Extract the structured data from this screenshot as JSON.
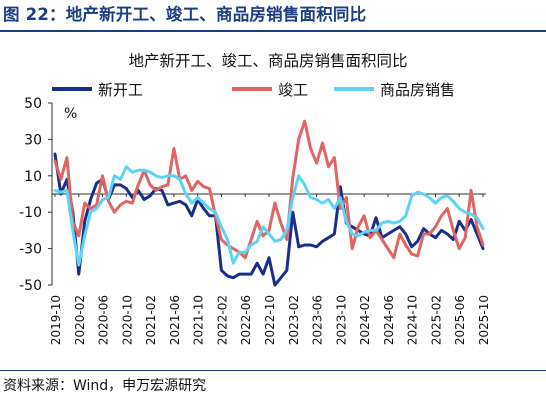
{
  "figure": {
    "title": "图 22：地产新开工、竣工、商品房销售面积同比",
    "source": "资料来源：Wind，申万宏源研究"
  },
  "chart_data": {
    "type": "line",
    "title": "地产新开工、竣工、商品房销售面积同比",
    "ylabel": "%",
    "ylim": [
      -50,
      50
    ],
    "yticks": [
      50,
      30,
      10,
      -10,
      -30,
      -50
    ],
    "ytick_labels": [
      "50",
      "30",
      "10",
      "-10",
      "-30",
      "-50"
    ],
    "grid": false,
    "legend_position": "top",
    "xtick_labels": [
      "2019-10",
      "2020-02",
      "2020-06",
      "2020-10",
      "2021-02",
      "2021-06",
      "2021-10",
      "2022-02",
      "2022-06",
      "2022-10",
      "2023-02",
      "2023-06",
      "2023-10",
      "2024-02",
      "2024-06",
      "2024-10",
      "2025-02",
      "2025-06",
      "2025-10"
    ],
    "x_labels_rotated": true,
    "x": [
      "2019-10",
      "2019-11",
      "2019-12",
      "2020-01",
      "2020-02",
      "2020-03",
      "2020-04",
      "2020-05",
      "2020-06",
      "2020-07",
      "2020-08",
      "2020-09",
      "2020-10",
      "2020-11",
      "2020-12",
      "2021-01",
      "2021-02",
      "2021-03",
      "2021-04",
      "2021-05",
      "2021-06",
      "2021-07",
      "2021-08",
      "2021-09",
      "2021-10",
      "2021-11",
      "2021-12",
      "2022-01",
      "2022-02",
      "2022-03",
      "2022-04",
      "2022-05",
      "2022-06",
      "2022-07",
      "2022-08",
      "2022-09",
      "2022-10",
      "2022-11",
      "2022-12",
      "2023-01",
      "2023-02",
      "2023-03",
      "2023-04",
      "2023-05",
      "2023-06",
      "2023-07",
      "2023-08",
      "2023-09",
      "2023-10",
      "2023-11",
      "2023-12",
      "2024-01",
      "2024-02",
      "2024-03",
      "2024-04",
      "2024-05",
      "2024-06",
      "2024-07",
      "2024-08",
      "2024-09",
      "2024-10",
      "2024-11",
      "2024-12",
      "2025-01",
      "2025-02",
      "2025-03",
      "2025-04",
      "2025-05",
      "2025-06",
      "2025-07",
      "2025-08",
      "2025-09",
      "2025-10"
    ],
    "series": [
      {
        "name": "新开工",
        "color": "#1a2f8a",
        "values": [
          22,
          0,
          8,
          -10,
          -44,
          -15,
          -3,
          6,
          8,
          -3,
          5,
          5,
          3,
          -2,
          2,
          -3,
          -1,
          3,
          2,
          -6,
          -5,
          -4,
          -6,
          -12,
          -3,
          -8,
          -12,
          -12,
          -42,
          -45,
          -46,
          -44,
          -44,
          -44,
          -38,
          -44,
          -35,
          -50,
          -46,
          -42,
          -10,
          -29,
          -28,
          -28,
          -29,
          -26,
          -24,
          -22,
          4,
          -16,
          -18,
          -20,
          -22,
          -23,
          -13,
          -24,
          -22,
          -20,
          -18,
          -22,
          -29,
          -26,
          -19,
          -22,
          -24,
          -20,
          -22,
          -25,
          -15,
          -20,
          -14,
          -22,
          -30
        ]
      },
      {
        "name": "竣工",
        "color": "#e06563",
        "values": [
          18,
          8,
          20,
          -15,
          -23,
          -5,
          -8,
          -6,
          10,
          -4,
          -10,
          -6,
          -4,
          -5,
          5,
          13,
          5,
          2,
          4,
          5,
          25,
          8,
          10,
          2,
          7,
          4,
          3,
          -12,
          -25,
          -28,
          -30,
          -32,
          -35,
          -25,
          -15,
          -23,
          -20,
          -5,
          -16,
          -25,
          9,
          30,
          40,
          25,
          17,
          28,
          15,
          20,
          -8,
          -2,
          -30,
          -18,
          -12,
          -24,
          -20,
          -25,
          -30,
          -35,
          -22,
          -28,
          -33,
          -34,
          -22,
          -22,
          -18,
          -12,
          -8,
          -20,
          -30,
          -24,
          2,
          -18,
          -28
        ]
      },
      {
        "name": "商品房销售",
        "color": "#5ed4f4",
        "values": [
          2,
          1,
          2,
          -20,
          -39,
          -23,
          -10,
          -8,
          -3,
          -2,
          10,
          8,
          15,
          12,
          13,
          13,
          12,
          10,
          9,
          10,
          10,
          8,
          0,
          -5,
          -2,
          -5,
          -8,
          -10,
          -18,
          -25,
          -38,
          -32,
          -32,
          -28,
          -26,
          -18,
          -22,
          -26,
          -25,
          -20,
          -2,
          10,
          5,
          -2,
          -3,
          -5,
          -3,
          -8,
          -2,
          -15,
          -22,
          -23,
          -21,
          -20,
          -20,
          -16,
          -15,
          -16,
          -15,
          -12,
          -1,
          1,
          0,
          -2,
          -5,
          -2,
          -1,
          -4,
          -8,
          -10,
          -11,
          -13,
          -19
        ]
      }
    ]
  }
}
